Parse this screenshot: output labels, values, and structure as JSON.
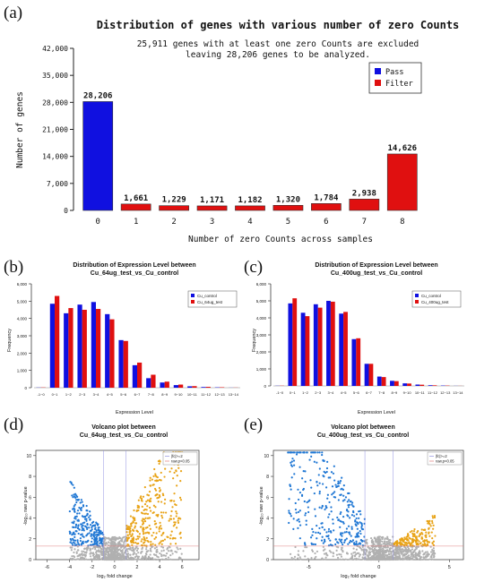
{
  "panels": {
    "a": "(a)",
    "b": "(b)",
    "c": "(c)",
    "d": "(d)",
    "e": "(e)"
  },
  "chart_data": [
    {
      "id": "a",
      "type": "bar",
      "title": "Distribution of genes with various number of zero Counts",
      "subtitle_line1": "25,911 genes with at least one zero Counts are excluded",
      "subtitle_line2": "leaving 28,206 genes to be analyzed.",
      "xlabel": "Number of zero Counts across samples",
      "ylabel": "Number of genes",
      "ylim": [
        0,
        42000
      ],
      "yticks": [
        0,
        7000,
        14000,
        21000,
        28000,
        35000,
        42000
      ],
      "ytick_labels": [
        "0",
        "7,000",
        "14,000",
        "21,000",
        "28,000",
        "35,000",
        "42,000"
      ],
      "categories": [
        "0",
        "1",
        "2",
        "3",
        "4",
        "5",
        "6",
        "7",
        "8"
      ],
      "values": [
        28206,
        1661,
        1229,
        1171,
        1182,
        1320,
        1784,
        2938,
        14626
      ],
      "value_labels": [
        "28,206",
        "1,661",
        "1,229",
        "1,171",
        "1,182",
        "1,320",
        "1,784",
        "2,938",
        "14,626"
      ],
      "bar_status": [
        "Pass",
        "Filter",
        "Filter",
        "Filter",
        "Filter",
        "Filter",
        "Filter",
        "Filter",
        "Filter"
      ],
      "legend": [
        {
          "name": "Pass",
          "color": "#1010e0"
        },
        {
          "name": "Filter",
          "color": "#e01010"
        }
      ],
      "legend_position": "top-right"
    },
    {
      "id": "b",
      "type": "bar",
      "title_line1": "Distribution of Expression Level between",
      "title_line2": "Cu_64ug_test_vs_Cu_control",
      "xlabel": "Expression Level",
      "ylabel": "Frequency",
      "ylim": [
        0,
        6000
      ],
      "yticks": [
        0,
        1000,
        2000,
        3000,
        4000,
        5000,
        6000
      ],
      "ytick_labels": [
        "0",
        "1,000",
        "2,000",
        "3,000",
        "4,000",
        "5,000",
        "6,000"
      ],
      "categories": [
        "-1~0",
        "0~1",
        "1~2",
        "2~3",
        "3~4",
        "4~5",
        "5~6",
        "6~7",
        "7~8",
        "8~9",
        "9~10",
        "10~11",
        "11~12",
        "12~13",
        "13~14"
      ],
      "series": [
        {
          "name": "Cu_control",
          "color": "#1010e0",
          "values": [
            10,
            4850,
            4300,
            4800,
            4950,
            4250,
            2750,
            1300,
            550,
            300,
            150,
            80,
            40,
            20,
            5
          ]
        },
        {
          "name": "Cu_64ug_test",
          "color": "#e01010",
          "values": [
            15,
            5300,
            4600,
            4500,
            4550,
            3950,
            2700,
            1450,
            750,
            350,
            180,
            90,
            50,
            25,
            8
          ]
        }
      ],
      "legend_position": "top-right"
    },
    {
      "id": "c",
      "type": "bar",
      "title_line1": "Distribution of Expression Level between",
      "title_line2": "Cu_400ug_test_vs_Cu_control",
      "xlabel": "Expression Level",
      "ylabel": "Frequency",
      "ylim": [
        0,
        6000
      ],
      "yticks": [
        0,
        1000,
        2000,
        3000,
        4000,
        5000,
        6000
      ],
      "ytick_labels": [
        "0",
        "1,000",
        "2,000",
        "3,000",
        "4,000",
        "5,000",
        "6,000"
      ],
      "categories": [
        "-1~0",
        "0~1",
        "1~2",
        "2~3",
        "3~4",
        "4~5",
        "5~6",
        "6~7",
        "7~8",
        "8~9",
        "9~10",
        "10~11",
        "11~12",
        "12~13",
        "13~14"
      ],
      "series": [
        {
          "name": "Cu_control",
          "color": "#1010e0",
          "values": [
            10,
            4850,
            4300,
            4800,
            5000,
            4250,
            2750,
            1300,
            550,
            300,
            150,
            80,
            40,
            20,
            5
          ]
        },
        {
          "name": "Cu_400ug_test",
          "color": "#e01010",
          "values": [
            12,
            5150,
            4100,
            4600,
            4950,
            4350,
            2800,
            1300,
            520,
            280,
            140,
            70,
            35,
            18,
            5
          ]
        }
      ],
      "legend_position": "top-right"
    },
    {
      "id": "d",
      "type": "scatter",
      "title_line1": "Volcano plot between",
      "title_line2": "Cu_64ug_test_vs_Cu_control",
      "xlabel": "log₂ fold change",
      "ylabel": "-log₁₀ raw p-value",
      "xlim": [
        -7,
        7.5
      ],
      "ylim": [
        0,
        10.5
      ],
      "xticks": [
        -6,
        -4,
        -2,
        0,
        2,
        4,
        6
      ],
      "yticks": [
        0,
        2,
        4,
        6,
        8,
        10
      ],
      "fc_threshold": 1,
      "p_threshold_line": 1.3,
      "legend": [
        {
          "name": "|fc|>=2",
          "color": "#9090e0"
        },
        {
          "name": "raw.p<0.05",
          "color": "#e08080"
        }
      ],
      "legend_position": "top-right",
      "point_colors": {
        "down": "#1f77d4",
        "up": "#e8a317",
        "ns": "#b0b0b0"
      },
      "density": {
        "down": 0.62,
        "up": 0.78,
        "left_extent": -4,
        "right_extent": 6
      }
    },
    {
      "id": "e",
      "type": "scatter",
      "title_line1": "Volcano plot between",
      "title_line2": "Cu_400ug_test_vs_Cu_control",
      "xlabel": "log₂ fold change",
      "ylabel": "-log₁₀ raw p-value",
      "xlim": [
        -7.5,
        6
      ],
      "ylim": [
        0,
        10.5
      ],
      "xticks": [
        -5,
        0,
        5
      ],
      "yticks": [
        0,
        2,
        4,
        6,
        8,
        10
      ],
      "fc_threshold": 1,
      "p_threshold_line": 1.3,
      "legend": [
        {
          "name": "|fc|>=2",
          "color": "#9090e0"
        },
        {
          "name": "raw.p<0.05",
          "color": "#e08080"
        }
      ],
      "legend_position": "top-right",
      "point_colors": {
        "down": "#1f77d4",
        "up": "#e8a317",
        "ns": "#b0b0b0"
      },
      "density": {
        "down": 0.9,
        "up": 0.35,
        "left_extent": -6.5,
        "right_extent": 4
      }
    }
  ]
}
